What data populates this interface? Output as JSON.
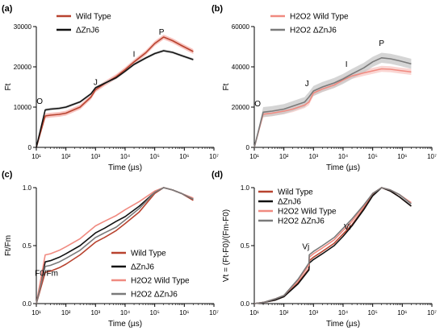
{
  "figure": {
    "colors": {
      "wild_type": "#b8432f",
      "znj6": "#111111",
      "h2o2_wild_type": "#f08a80",
      "h2o2_znj6": "#7a7a7a",
      "band_red": "#f5b0ab",
      "band_pink": "#f8c8c4",
      "band_grey": "#c7c7c7"
    }
  },
  "chart_data": [
    {
      "panel": "(a)",
      "type": "line",
      "xlabel": "Time (µs)",
      "ylabel": "Ft",
      "xscale": "log",
      "xlim": [
        10,
        10000000
      ],
      "ylim": [
        0,
        30000
      ],
      "xticks": [
        "10¹",
        "10²",
        "10³",
        "10⁴",
        "10⁵",
        "10⁶",
        "10⁷"
      ],
      "yticks": [
        "0",
        "10000",
        "20000",
        "30000"
      ],
      "legend": "top-left",
      "annotations": [
        {
          "text": "O",
          "x": 13,
          "y": 10800
        },
        {
          "text": "J",
          "x": 1000,
          "y": 15500
        },
        {
          "text": "I",
          "x": 20000,
          "y": 22500
        },
        {
          "text": "P",
          "x": 170000,
          "y": 28000
        }
      ],
      "series": [
        {
          "name": "Wild Type",
          "color_key": "wild_type",
          "band_key": "band_red",
          "error": 600,
          "x": [
            10,
            20,
            30,
            60,
            100,
            300,
            700,
            1000,
            2000,
            5000,
            10000,
            20000,
            50000,
            100000,
            200000,
            400000,
            800000,
            2000000
          ],
          "y": [
            0,
            7800,
            8000,
            8200,
            8500,
            10000,
            12500,
            14300,
            15800,
            17600,
            19300,
            21200,
            23500,
            25800,
            27400,
            26500,
            25300,
            23800
          ]
        },
        {
          "name": "ΔZnJ6",
          "color_key": "znj6",
          "band_key": "band_grey",
          "error": 350,
          "x": [
            10,
            20,
            30,
            60,
            100,
            300,
            700,
            1000,
            2000,
            5000,
            10000,
            20000,
            50000,
            100000,
            200000,
            400000,
            800000,
            2000000
          ],
          "y": [
            0,
            9300,
            9500,
            9700,
            10000,
            11300,
            13300,
            14800,
            15900,
            17300,
            18900,
            20600,
            22200,
            23300,
            24000,
            23600,
            22800,
            21800
          ]
        }
      ]
    },
    {
      "panel": "(b)",
      "type": "line",
      "xlabel": "Time (µs)",
      "ylabel": "Ft",
      "xscale": "log",
      "xlim": [
        10,
        10000000
      ],
      "ylim": [
        0,
        60000
      ],
      "xticks": [
        "10¹",
        "10²",
        "10³",
        "10⁴",
        "10⁵",
        "10⁶",
        "10⁷"
      ],
      "yticks": [
        "0",
        "20000",
        "40000",
        "60000"
      ],
      "legend": "top-left",
      "annotations": [
        {
          "text": "O",
          "x": 13,
          "y": 20500
        },
        {
          "text": "J",
          "x": 600,
          "y": 30500
        },
        {
          "text": "I",
          "x": 13000,
          "y": 40000
        },
        {
          "text": "P",
          "x": 200000,
          "y": 50500
        }
      ],
      "series": [
        {
          "name": "H2O2 Wild Type",
          "color_key": "h2o2_wild_type",
          "band_key": "band_pink",
          "error": 1500,
          "x": [
            10,
            20,
            40,
            100,
            200,
            500,
            700,
            1000,
            2000,
            5000,
            10000,
            20000,
            50000,
            100000,
            200000,
            400000,
            800000,
            2000000
          ],
          "y": [
            0,
            16500,
            17000,
            18000,
            19000,
            21000,
            22500,
            27000,
            29000,
            31000,
            33500,
            35500,
            37000,
            38000,
            39000,
            38800,
            38200,
            37500
          ]
        },
        {
          "name": "H2O2 ΔZnJ6",
          "color_key": "h2o2_znj6",
          "band_key": "band_grey",
          "error": 2500,
          "x": [
            10,
            20,
            40,
            100,
            200,
            500,
            700,
            1000,
            2000,
            5000,
            10000,
            20000,
            50000,
            100000,
            200000,
            400000,
            800000,
            2000000
          ],
          "y": [
            0,
            17500,
            18000,
            19000,
            20500,
            22500,
            25000,
            28000,
            30000,
            32000,
            34000,
            36500,
            39500,
            42500,
            44500,
            44000,
            43000,
            41500
          ]
        }
      ]
    },
    {
      "panel": "(c)",
      "type": "line",
      "xlabel": "Time (µs)",
      "ylabel": "Ft/Fm",
      "xscale": "log",
      "xlim": [
        10,
        10000000
      ],
      "ylim": [
        0,
        1.0
      ],
      "xticks": [
        "10¹",
        "10²",
        "10³",
        "10⁴",
        "10⁵",
        "10⁶",
        "10⁷"
      ],
      "yticks": [
        "0.0",
        "0.5",
        "1.0"
      ],
      "legend": "lower-right",
      "annotations": [
        {
          "text": "F0/Fm",
          "x": 22,
          "y": 0.24
        }
      ],
      "series": [
        {
          "name": "Wild Type",
          "color_key": "wild_type",
          "x": [
            10,
            20,
            30,
            60,
            100,
            300,
            1000,
            2000,
            5000,
            10000,
            30000,
            100000,
            200000,
            400000,
            800000,
            2000000
          ],
          "y": [
            0,
            0.27,
            0.28,
            0.31,
            0.34,
            0.42,
            0.53,
            0.57,
            0.63,
            0.69,
            0.79,
            0.95,
            1.0,
            0.98,
            0.95,
            0.89
          ]
        },
        {
          "name": "ΔZnJ6",
          "color_key": "znj6",
          "x": [
            10,
            20,
            30,
            60,
            100,
            300,
            1000,
            2000,
            5000,
            10000,
            30000,
            100000,
            200000,
            400000,
            800000,
            2000000
          ],
          "y": [
            0,
            0.36,
            0.37,
            0.4,
            0.43,
            0.5,
            0.61,
            0.65,
            0.71,
            0.75,
            0.84,
            0.96,
            1.0,
            0.98,
            0.95,
            0.9
          ]
        },
        {
          "name": "H2O2 Wild Type",
          "color_key": "h2o2_wild_type",
          "x": [
            10,
            20,
            30,
            60,
            100,
            300,
            1000,
            2000,
            5000,
            10000,
            30000,
            100000,
            200000,
            400000,
            800000,
            2000000
          ],
          "y": [
            0,
            0.42,
            0.43,
            0.46,
            0.49,
            0.56,
            0.67,
            0.71,
            0.76,
            0.81,
            0.88,
            0.97,
            1.0,
            0.98,
            0.95,
            0.91
          ]
        },
        {
          "name": "H2O2 ΔZnJ6",
          "color_key": "h2o2_znj6",
          "x": [
            10,
            20,
            30,
            60,
            100,
            300,
            1000,
            2000,
            5000,
            10000,
            30000,
            100000,
            200000,
            400000,
            800000,
            2000000
          ],
          "y": [
            0,
            0.32,
            0.33,
            0.36,
            0.39,
            0.46,
            0.57,
            0.61,
            0.66,
            0.72,
            0.82,
            0.96,
            1.0,
            0.98,
            0.95,
            0.9
          ]
        }
      ]
    },
    {
      "panel": "(d)",
      "type": "line",
      "xlabel": "Time (µs)",
      "ylabel": "Vt = (Ft-F0)/(Fm-F0)",
      "xscale": "log",
      "xlim": [
        10,
        10000000
      ],
      "ylim": [
        0,
        1.0
      ],
      "xticks": [
        "10¹",
        "10²",
        "10³",
        "10⁴",
        "10⁵",
        "10⁶",
        "10⁷"
      ],
      "yticks": [
        "0.0",
        "0.5",
        "1.0"
      ],
      "legend": "top-left",
      "annotations": [
        {
          "text": "Vj",
          "x": 550,
          "y": 0.47
        },
        {
          "text": "Vi",
          "x": 14000,
          "y": 0.64
        }
      ],
      "series": [
        {
          "name": "Wild Type",
          "color_key": "wild_type",
          "x": [
            10,
            20,
            50,
            100,
            300,
            700,
            720,
            1000,
            2000,
            5000,
            10000,
            20000,
            50000,
            100000,
            200000,
            400000,
            800000,
            2000000
          ],
          "y": [
            0,
            0.01,
            0.03,
            0.06,
            0.18,
            0.3,
            0.37,
            0.4,
            0.45,
            0.52,
            0.6,
            0.68,
            0.82,
            0.94,
            1.0,
            0.97,
            0.92,
            0.84
          ]
        },
        {
          "name": "ΔZnJ6",
          "color_key": "znj6",
          "x": [
            10,
            20,
            50,
            100,
            300,
            700,
            720,
            1000,
            2000,
            5000,
            10000,
            20000,
            50000,
            100000,
            200000,
            400000,
            800000,
            2000000
          ],
          "y": [
            0,
            0.01,
            0.03,
            0.06,
            0.17,
            0.29,
            0.35,
            0.38,
            0.43,
            0.5,
            0.58,
            0.67,
            0.81,
            0.93,
            1.0,
            0.97,
            0.92,
            0.84
          ]
        },
        {
          "name": "H2O2 Wild Type",
          "color_key": "h2o2_wild_type",
          "x": [
            10,
            20,
            50,
            100,
            300,
            700,
            720,
            1000,
            2000,
            5000,
            10000,
            20000,
            50000,
            100000,
            200000,
            400000,
            800000,
            2000000
          ],
          "y": [
            0,
            0.01,
            0.04,
            0.07,
            0.2,
            0.33,
            0.4,
            0.43,
            0.48,
            0.55,
            0.63,
            0.71,
            0.84,
            0.95,
            1.0,
            0.98,
            0.94,
            0.87
          ]
        },
        {
          "name": "H2O2 ΔZnJ6",
          "color_key": "h2o2_znj6",
          "x": [
            10,
            20,
            50,
            100,
            300,
            700,
            720,
            1000,
            2000,
            5000,
            10000,
            20000,
            50000,
            100000,
            200000,
            400000,
            800000,
            2000000
          ],
          "y": [
            0,
            0.01,
            0.04,
            0.07,
            0.21,
            0.35,
            0.42,
            0.45,
            0.5,
            0.57,
            0.65,
            0.73,
            0.85,
            0.95,
            1.0,
            0.98,
            0.94,
            0.86
          ]
        }
      ]
    }
  ]
}
